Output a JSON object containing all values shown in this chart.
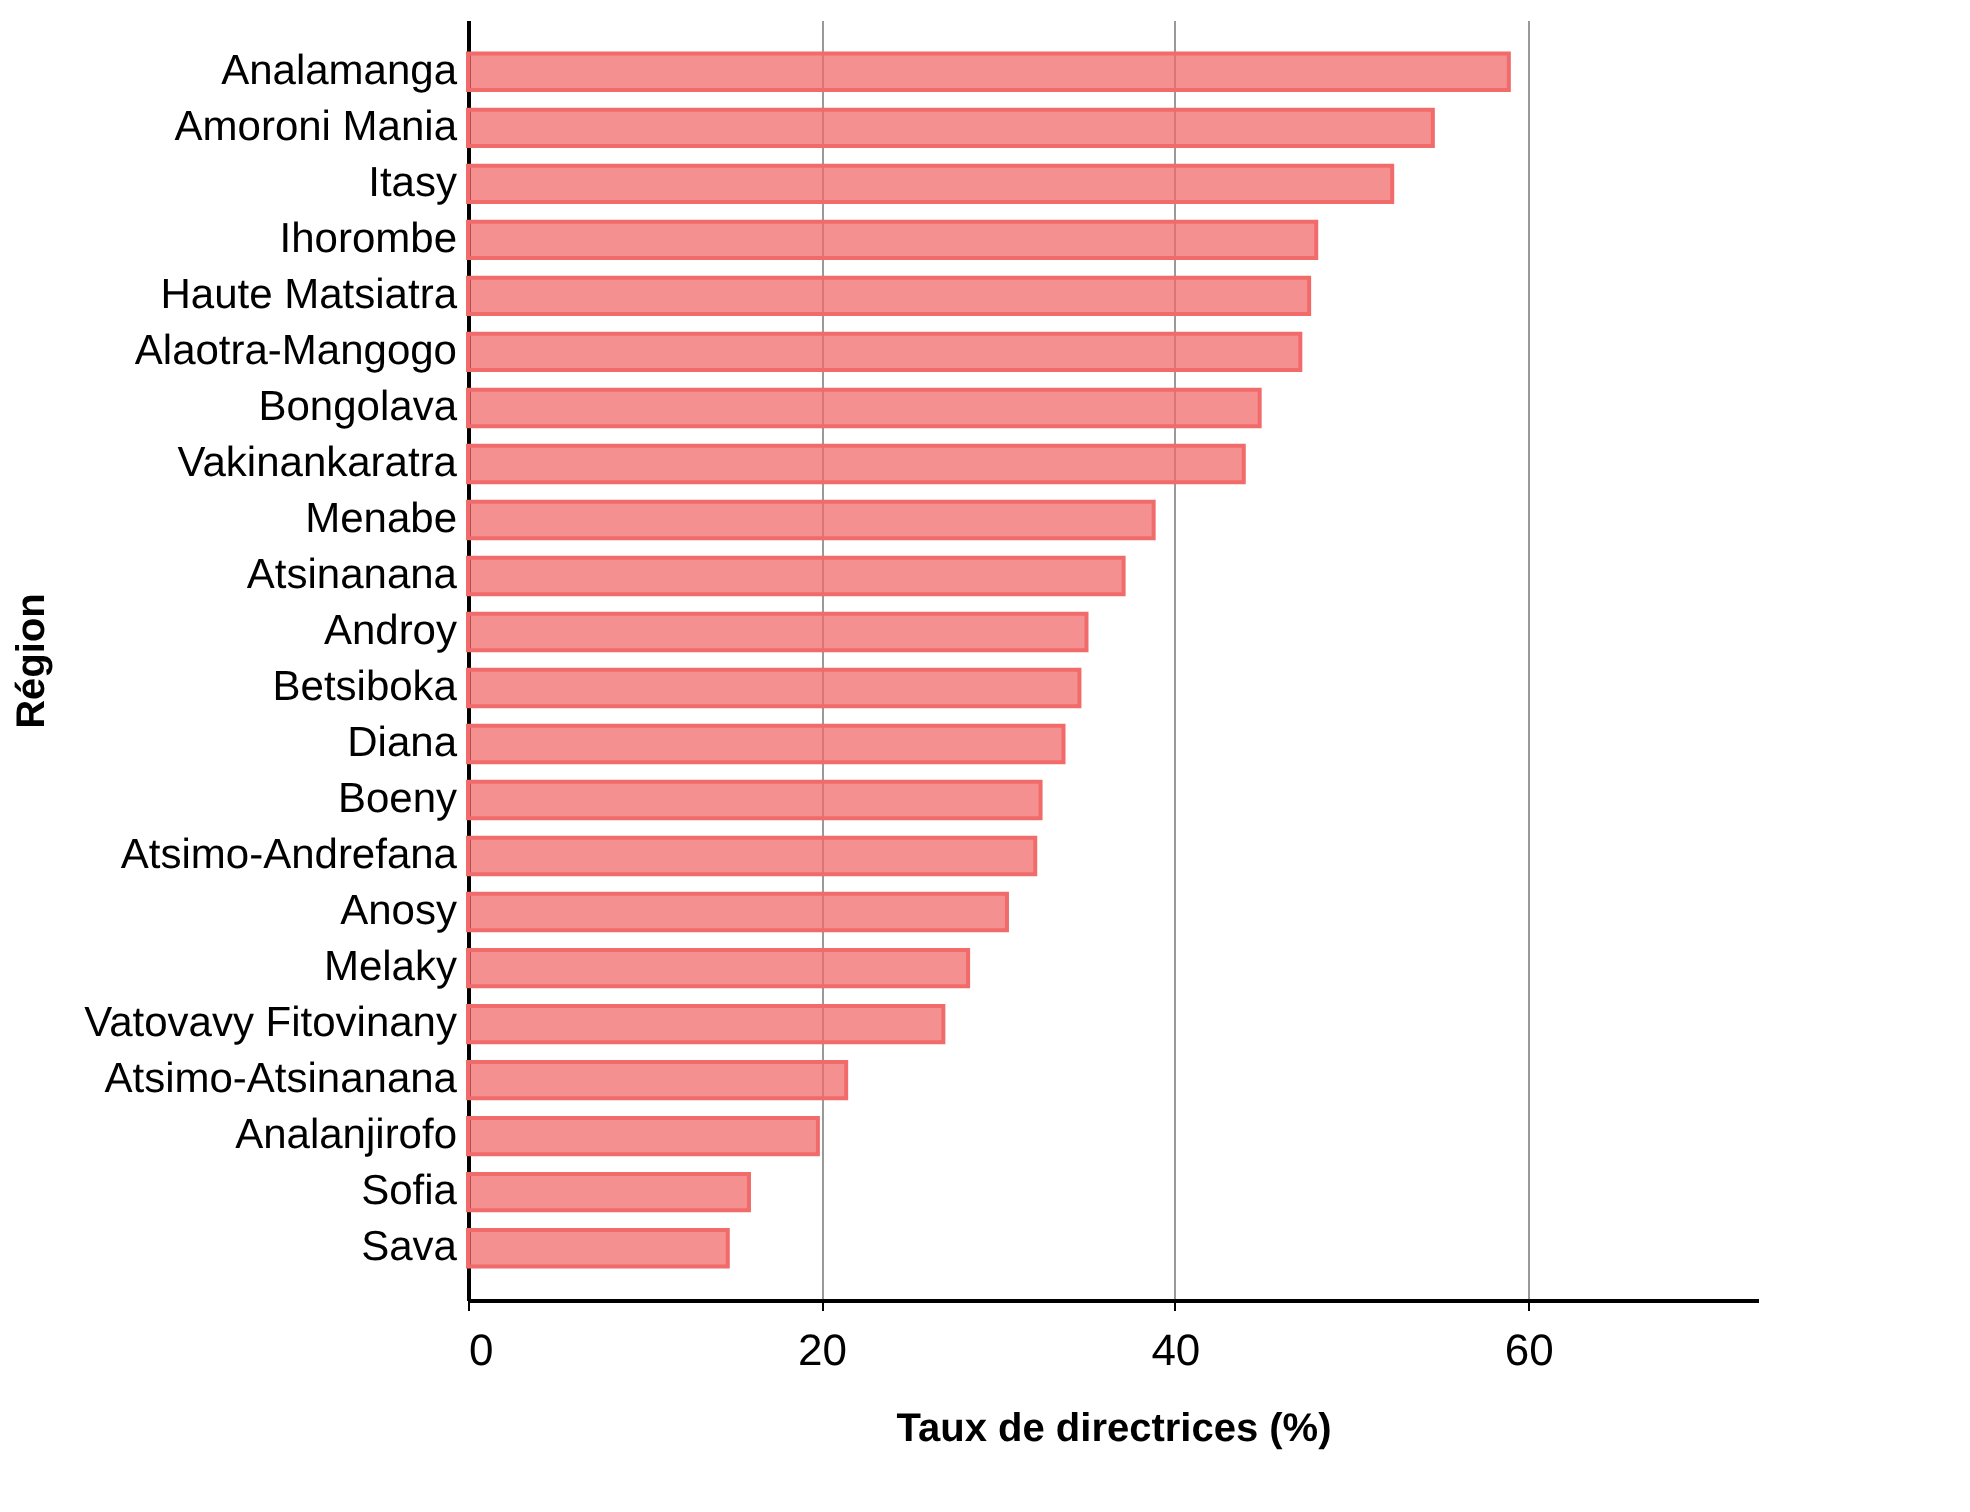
{
  "chart_data": {
    "type": "bar",
    "orientation": "horizontal",
    "xlabel": "Taux de directrices (%)",
    "ylabel": "Région",
    "categories": [
      "Analamanga",
      "Amoroni Mania",
      "Itasy",
      "Ihorombe",
      "Haute Matsiatra",
      "Alaotra-Mangogo",
      "Bongolava",
      "Vakinankaratra",
      "Menabe",
      "Atsinanana",
      "Androy",
      "Betsiboka",
      "Diana",
      "Boeny",
      "Atsimo-Andrefana",
      "Anosy",
      "Melaky",
      "Vatovavy Fitovinany",
      "Atsimo-Atsinanana",
      "Analanjirofo",
      "Sofia",
      "Sava"
    ],
    "values": [
      58.9,
      54.6,
      52.3,
      48.0,
      47.6,
      47.1,
      44.8,
      43.9,
      38.8,
      37.1,
      35.0,
      34.6,
      33.7,
      32.4,
      32.1,
      30.5,
      28.3,
      26.9,
      21.4,
      19.8,
      15.9,
      14.7
    ],
    "color": "#f26b6b",
    "xlim": [
      0,
      73
    ],
    "xticks": [
      0,
      20,
      40,
      60
    ],
    "grid": "x"
  }
}
